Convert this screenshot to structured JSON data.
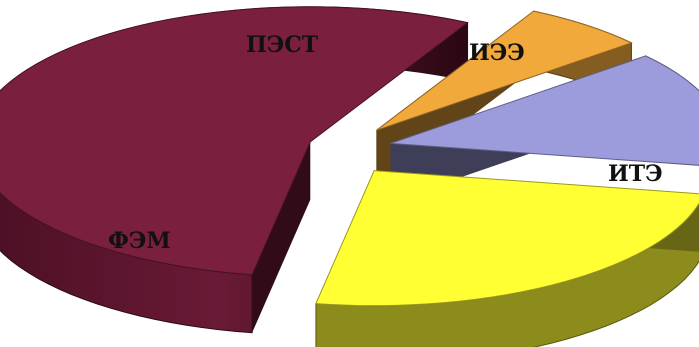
{
  "chart_data": {
    "type": "pie",
    "title": "",
    "three_d": true,
    "exploded": true,
    "slices": [
      {
        "label": "ФЭМ",
        "value": 55,
        "color": "#7a1f3d"
      },
      {
        "label": "ПЭСТ",
        "value": 6,
        "color": "#f2a93b"
      },
      {
        "label": "ИЭЭ",
        "value": 14,
        "color": "#9c9cdc"
      },
      {
        "label": "ИТЭ",
        "value": 25,
        "color": "#ffff33"
      }
    ]
  }
}
